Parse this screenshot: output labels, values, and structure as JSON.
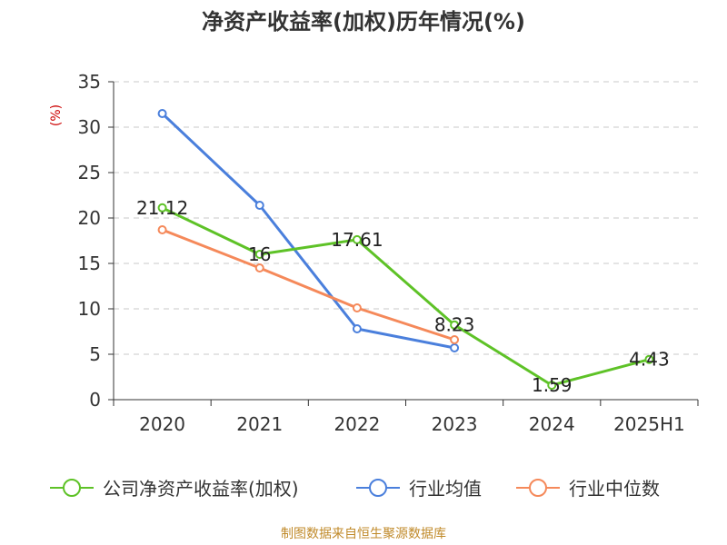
{
  "title": "净资产收益率(加权)历年情况(%)",
  "source_note": "制图数据来自恒生聚源数据库",
  "chart_data": {
    "type": "line",
    "title": "净资产收益率(加权)历年情况(%)",
    "ylabel": "(%)",
    "xlabel": "",
    "ylim": [
      0,
      35
    ],
    "yticks": [
      0,
      5,
      10,
      15,
      20,
      25,
      30,
      35
    ],
    "categories": [
      "2020",
      "2021",
      "2022",
      "2023",
      "2024",
      "2025H1"
    ],
    "grid": true,
    "legend_position": "bottom",
    "series": [
      {
        "name": "公司净资产收益率(加权)",
        "color": "#5ec227",
        "values": [
          21.12,
          16,
          17.61,
          8.23,
          1.59,
          4.43
        ],
        "data_labels": [
          "21.12",
          "16",
          "17.61",
          "8.23",
          "1.59",
          "4.43"
        ]
      },
      {
        "name": "行业均值",
        "color": "#4a7fdc",
        "values": [
          31.5,
          21.4,
          7.8,
          5.7,
          null,
          null
        ]
      },
      {
        "name": "行业中位数",
        "color": "#f5895a",
        "values": [
          18.7,
          14.5,
          10.1,
          6.6,
          null,
          null
        ]
      }
    ]
  }
}
